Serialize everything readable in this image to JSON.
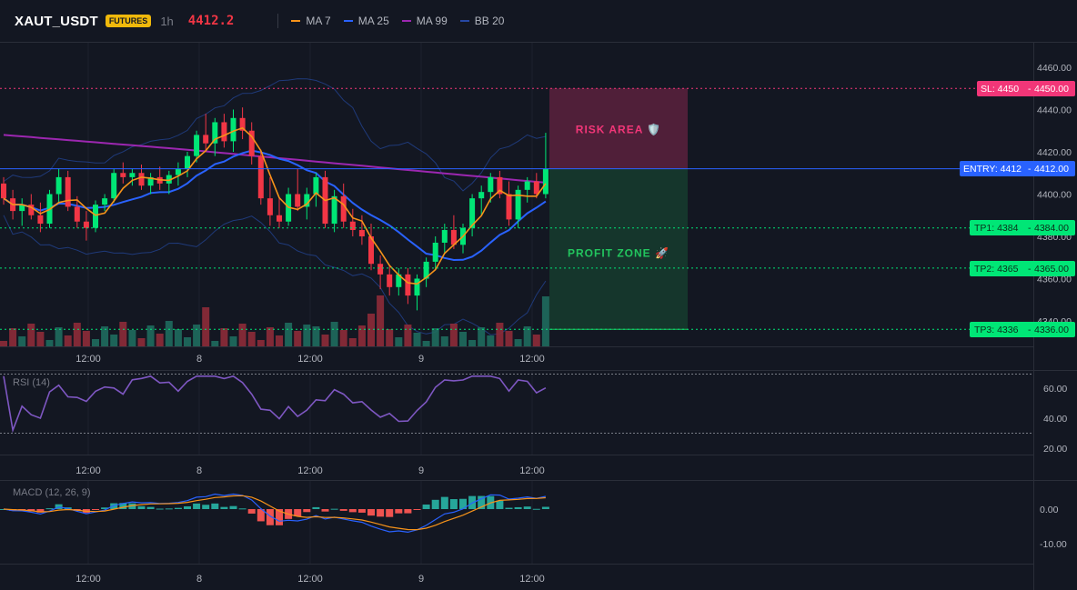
{
  "header": {
    "symbol": "XAUT_USDT",
    "badge": "FUTURES",
    "interval": "1h",
    "last_price": "4412.2",
    "legend": [
      {
        "name": "MA 7",
        "color": "#f7931a"
      },
      {
        "name": "MA 25",
        "color": "#2962ff"
      },
      {
        "name": "MA 99",
        "color": "#9c27b0"
      },
      {
        "name": "BB 20",
        "color": "#1e3a8a"
      }
    ]
  },
  "colors": {
    "background": "#131722",
    "up": "#089981",
    "up_bright": "#00e676",
    "down": "#f23645",
    "risk": "#f23678",
    "profit": "#22c55e",
    "entry": "#2962ff",
    "rsi": "#7e57c2"
  },
  "price_axis": {
    "ticks": [
      "4460.00",
      "4440.00",
      "4420.00",
      "4400.00",
      "4380.00",
      "4360.00",
      "4340.00"
    ]
  },
  "levels": {
    "sl": {
      "label": "SL: 4450",
      "price": "4450.00"
    },
    "entry": {
      "label": "ENTRY: 4412",
      "price": "4412.00"
    },
    "tp1": {
      "label": "TP1: 4384",
      "price": "4384.00"
    },
    "tp2": {
      "label": "TP2: 4365",
      "price": "4365.00"
    },
    "tp3": {
      "label": "TP3: 4336",
      "price": "4336.00"
    }
  },
  "zones": {
    "risk_label": "RISK AREA 🛡️",
    "profit_label": "PROFIT ZONE 🚀"
  },
  "time_axis": [
    "12:00",
    "8",
    "12:00",
    "9",
    "12:00"
  ],
  "rsi": {
    "title": "RSI (14)",
    "ticks": [
      "60.00",
      "40.00",
      "20.00"
    ]
  },
  "macd": {
    "title": "MACD (12, 26, 9)",
    "ticks": [
      "0.00",
      "-10.00"
    ]
  },
  "chart_data": {
    "type": "candlestick",
    "title": "",
    "ylim": [
      4330,
      4465
    ],
    "candles": [
      [
        4405,
        4408,
        4395,
        4398
      ],
      [
        4398,
        4402,
        4388,
        4392
      ],
      [
        4392,
        4398,
        4385,
        4395
      ],
      [
        4395,
        4400,
        4388,
        4390
      ],
      [
        4390,
        4396,
        4382,
        4386
      ],
      [
        4386,
        4402,
        4384,
        4400
      ],
      [
        4400,
        4412,
        4396,
        4408
      ],
      [
        4408,
        4411,
        4392,
        4394
      ],
      [
        4394,
        4399,
        4384,
        4387
      ],
      [
        4387,
        4392,
        4378,
        4384
      ],
      [
        4384,
        4397,
        4382,
        4395
      ],
      [
        4395,
        4400,
        4392,
        4398
      ],
      [
        4398,
        4412,
        4396,
        4410
      ],
      [
        4410,
        4415,
        4405,
        4408
      ],
      [
        4408,
        4412,
        4404,
        4410
      ],
      [
        4410,
        4414,
        4402,
        4404
      ],
      [
        4404,
        4410,
        4400,
        4408
      ],
      [
        4408,
        4413,
        4402,
        4405
      ],
      [
        4405,
        4411,
        4400,
        4409
      ],
      [
        4409,
        4415,
        4404,
        4412
      ],
      [
        4412,
        4420,
        4408,
        4418
      ],
      [
        4418,
        4430,
        4415,
        4428
      ],
      [
        4428,
        4438,
        4420,
        4424
      ],
      [
        4424,
        4436,
        4418,
        4434
      ],
      [
        4434,
        4438,
        4422,
        4425
      ],
      [
        4425,
        4440,
        4420,
        4436
      ],
      [
        4436,
        4441,
        4426,
        4430
      ],
      [
        4430,
        4434,
        4414,
        4418
      ],
      [
        4418,
        4421,
        4395,
        4398
      ],
      [
        4398,
        4408,
        4385,
        4390
      ],
      [
        4390,
        4398,
        4384,
        4387
      ],
      [
        4387,
        4403,
        4385,
        4400
      ],
      [
        4400,
        4412,
        4392,
        4394
      ],
      [
        4394,
        4403,
        4388,
        4400
      ],
      [
        4400,
        4410,
        4394,
        4408
      ],
      [
        4408,
        4411,
        4384,
        4386
      ],
      [
        4386,
        4402,
        4382,
        4399
      ],
      [
        4399,
        4405,
        4384,
        4387
      ],
      [
        4387,
        4393,
        4380,
        4383
      ],
      [
        4383,
        4390,
        4376,
        4380
      ],
      [
        4380,
        4386,
        4364,
        4367
      ],
      [
        4367,
        4371,
        4355,
        4362
      ],
      [
        4362,
        4366,
        4352,
        4356
      ],
      [
        4356,
        4365,
        4352,
        4362
      ],
      [
        4362,
        4365,
        4348,
        4352
      ],
      [
        4352,
        4362,
        4345,
        4360
      ],
      [
        4360,
        4370,
        4356,
        4368
      ],
      [
        4368,
        4380,
        4364,
        4377
      ],
      [
        4377,
        4386,
        4372,
        4383
      ],
      [
        4383,
        4390,
        4374,
        4376
      ],
      [
        4376,
        4386,
        4372,
        4384
      ],
      [
        4384,
        4400,
        4380,
        4398
      ],
      [
        4398,
        4404,
        4390,
        4401
      ],
      [
        4401,
        4410,
        4396,
        4408
      ],
      [
        4408,
        4411,
        4398,
        4400
      ],
      [
        4400,
        4406,
        4385,
        4388
      ],
      [
        4388,
        4404,
        4384,
        4402
      ],
      [
        4402,
        4408,
        4396,
        4406
      ],
      [
        4406,
        4410,
        4398,
        4400
      ],
      [
        4400,
        4429,
        4398,
        4412
      ]
    ]
  }
}
